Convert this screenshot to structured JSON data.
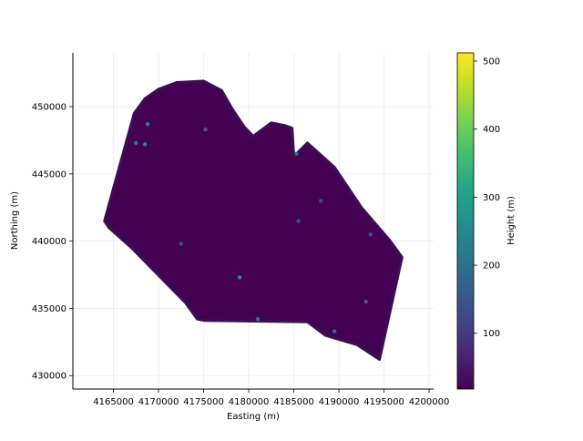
{
  "chart_data": {
    "type": "scatter",
    "title": "",
    "xlabel": "Easting (m)",
    "ylabel": "Northing (m)",
    "xlim": [
      4160500,
      4200500
    ],
    "ylim": [
      429000,
      454000
    ],
    "grid": true,
    "x_ticks": [
      4165000,
      4170000,
      4175000,
      4180000,
      4185000,
      4190000,
      4195000,
      4200000
    ],
    "x_tick_labels": [
      "4165000",
      "4170000",
      "4175000",
      "4180000",
      "4185000",
      "4190000",
      "4195000",
      "4200000"
    ],
    "y_ticks": [
      430000,
      435000,
      440000,
      445000,
      450000
    ],
    "y_tick_labels": [
      "430000",
      "435000",
      "440000",
      "445000",
      "450000"
    ],
    "survey_outline": [
      [
        4164000,
        441500
      ],
      [
        4167300,
        449500
      ],
      [
        4168500,
        450600
      ],
      [
        4170000,
        451300
      ],
      [
        4172000,
        451800
      ],
      [
        4175000,
        451900
      ],
      [
        4177000,
        451200
      ],
      [
        4178200,
        449800
      ],
      [
        4179500,
        448500
      ],
      [
        4180500,
        447800
      ],
      [
        4182500,
        448800
      ],
      [
        4184000,
        448600
      ],
      [
        4184800,
        448400
      ],
      [
        4185000,
        446300
      ],
      [
        4186500,
        447300
      ],
      [
        4189500,
        445500
      ],
      [
        4192500,
        442500
      ],
      [
        4195700,
        440000
      ],
      [
        4197000,
        438800
      ],
      [
        4194500,
        431200
      ],
      [
        4192000,
        432300
      ],
      [
        4188500,
        433000
      ],
      [
        4186500,
        434000
      ],
      [
        4175000,
        434100
      ],
      [
        4174300,
        434200
      ],
      [
        4173000,
        435400
      ],
      [
        4167000,
        439500
      ],
      [
        4164500,
        441000
      ]
    ],
    "anomalies": [
      {
        "x": 4167500,
        "y": 447300,
        "h": 230
      },
      {
        "x": 4168500,
        "y": 447200,
        "h": 260
      },
      {
        "x": 4168800,
        "y": 448700,
        "h": 240
      },
      {
        "x": 4175200,
        "y": 448300,
        "h": 180
      },
      {
        "x": 4179000,
        "y": 437300,
        "h": 250
      },
      {
        "x": 4181000,
        "y": 434200,
        "h": 220
      },
      {
        "x": 4189500,
        "y": 433300,
        "h": 200
      },
      {
        "x": 4185300,
        "y": 446500,
        "h": 190
      },
      {
        "x": 4185500,
        "y": 441500,
        "h": 150
      },
      {
        "x": 4172500,
        "y": 439800,
        "h": 160
      },
      {
        "x": 4193500,
        "y": 440500,
        "h": 140
      },
      {
        "x": 4193000,
        "y": 435500,
        "h": 170
      },
      {
        "x": 4188000,
        "y": 443000,
        "h": 120
      }
    ],
    "colorbar": {
      "label": "Height (m)",
      "min": 18,
      "max": 512,
      "ticks": [
        100,
        200,
        300,
        400,
        500
      ],
      "tick_labels": [
        "100",
        "200",
        "300",
        "400",
        "500"
      ],
      "colormap": "viridis"
    },
    "colors": {
      "background_fill": "#440154",
      "grid": "#ececec"
    }
  }
}
